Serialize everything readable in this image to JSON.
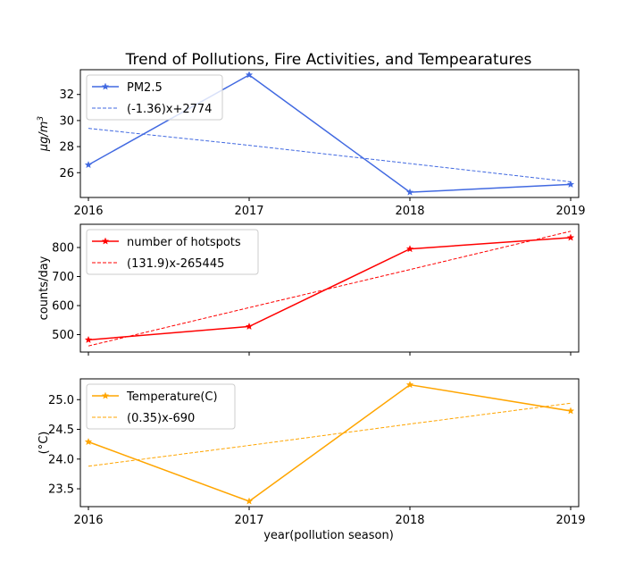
{
  "figure": {
    "title": "Trend of Pollutions, Fire Activities, and Tempearatures",
    "xlabel": "year(pollution season)"
  },
  "chart_data": [
    {
      "type": "line",
      "x": [
        2016,
        2017,
        2018,
        2019
      ],
      "xticks": [
        "2016",
        "2017",
        "2018",
        "2019"
      ],
      "xlim": [
        2015.95,
        2019.05
      ],
      "ylabel": "µg/m3",
      "ylim": [
        24.1,
        33.9
      ],
      "yticks": [
        26,
        28,
        30,
        32
      ],
      "legend": "top-left",
      "series": [
        {
          "name": "PM2.5",
          "values": [
            26.6,
            33.5,
            24.5,
            25.1
          ],
          "color": "#4169e1",
          "marker": "star",
          "style": "solid"
        },
        {
          "name": "(-1.36)x+2774",
          "values": [
            29.4,
            28.1,
            26.7,
            25.3
          ],
          "color": "#4169e1",
          "style": "dashed"
        }
      ]
    },
    {
      "type": "line",
      "x": [
        2016,
        2017,
        2018,
        2019
      ],
      "xlim": [
        2015.95,
        2019.05
      ],
      "ylabel": "counts/day",
      "ylim": [
        440,
        880
      ],
      "yticks": [
        500,
        600,
        700,
        800
      ],
      "legend": "top-left",
      "series": [
        {
          "name": "number of hotspots",
          "values": [
            482,
            528,
            795,
            834
          ],
          "color": "#ff0000",
          "marker": "star",
          "style": "solid"
        },
        {
          "name": "(131.9)x-265445",
          "values": [
            461,
            593,
            724,
            856
          ],
          "color": "#ff0000",
          "style": "dashed"
        }
      ]
    },
    {
      "type": "line",
      "x": [
        2016,
        2017,
        2018,
        2019
      ],
      "xticks": [
        "2016",
        "2017",
        "2018",
        "2019"
      ],
      "xlim": [
        2015.95,
        2019.05
      ],
      "ylabel": "(°C)",
      "ylim": [
        23.2,
        25.35
      ],
      "yticks": [
        23.5,
        24.0,
        24.5,
        25.0
      ],
      "legend": "top-left",
      "series": [
        {
          "name": "Temperature(C)",
          "values": [
            24.29,
            23.29,
            25.25,
            24.81
          ],
          "color": "#ffa500",
          "marker": "star",
          "style": "solid"
        },
        {
          "name": "(0.35)x-690",
          "values": [
            23.88,
            24.23,
            24.59,
            24.94
          ],
          "color": "#ffa500",
          "style": "dashed"
        }
      ]
    }
  ]
}
